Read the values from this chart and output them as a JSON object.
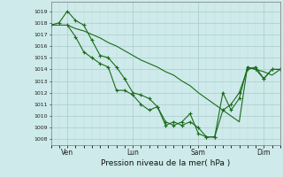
{
  "background_color": "#ceeaea",
  "grid_color_major": "#aacccc",
  "grid_color_minor": "#bbdddd",
  "line_color": "#1a6b1a",
  "xlabel": "Pression niveau de la mer( hPa )",
  "ylim": [
    1007.5,
    1019.8
  ],
  "yticks": [
    1008,
    1009,
    1010,
    1011,
    1012,
    1013,
    1014,
    1015,
    1016,
    1017,
    1018,
    1019
  ],
  "xlim": [
    0,
    168
  ],
  "xtick_positions": [
    12,
    60,
    108,
    156
  ],
  "xtick_labels": [
    "Ven",
    "Lun",
    "Sam",
    "Dim"
  ],
  "series1_with_markers": {
    "x": [
      0,
      6,
      12,
      18,
      24,
      30,
      36,
      42,
      48,
      54,
      60,
      66,
      72,
      78,
      84,
      90,
      96,
      102,
      108,
      114,
      120,
      126,
      132,
      138,
      144,
      150,
      156,
      162,
      168
    ],
    "y": [
      1017.8,
      1018.0,
      1019.0,
      1018.2,
      1017.8,
      1016.5,
      1015.2,
      1015.0,
      1014.2,
      1013.2,
      1012.0,
      1011.8,
      1011.5,
      1010.8,
      1009.5,
      1009.2,
      1009.5,
      1010.2,
      1008.5,
      1008.2,
      1008.2,
      1010.5,
      1011.0,
      1012.0,
      1014.0,
      1014.2,
      1013.2,
      1014.0,
      1014.0
    ]
  },
  "series2_flat": {
    "x": [
      0,
      6,
      12,
      18,
      24,
      30,
      36,
      42,
      48,
      54,
      60,
      66,
      72,
      78,
      84,
      90,
      96,
      102,
      108,
      114,
      120,
      126,
      132,
      138,
      144,
      150,
      156,
      162,
      168
    ],
    "y": [
      1017.8,
      1017.8,
      1017.8,
      1017.5,
      1017.3,
      1017.0,
      1016.7,
      1016.3,
      1016.0,
      1015.6,
      1015.2,
      1014.8,
      1014.5,
      1014.2,
      1013.8,
      1013.5,
      1013.0,
      1012.6,
      1012.0,
      1011.5,
      1011.0,
      1010.5,
      1010.0,
      1009.5,
      1014.2,
      1014.0,
      1013.8,
      1013.5,
      1014.0
    ]
  },
  "series3_with_markers": {
    "x": [
      12,
      18,
      24,
      30,
      36,
      42,
      48,
      54,
      60,
      66,
      72,
      78,
      84,
      90,
      96,
      102,
      108,
      114,
      120,
      126,
      132,
      138,
      144,
      150,
      156,
      162,
      168
    ],
    "y": [
      1017.8,
      1016.8,
      1015.5,
      1015.0,
      1014.5,
      1014.2,
      1012.2,
      1012.2,
      1011.8,
      1011.0,
      1010.5,
      1010.8,
      1009.2,
      1009.5,
      1009.2,
      1009.5,
      1009.0,
      1008.2,
      1008.2,
      1012.0,
      1010.5,
      1011.5,
      1014.2,
      1014.0,
      1013.2,
      1014.0,
      1014.0
    ]
  }
}
